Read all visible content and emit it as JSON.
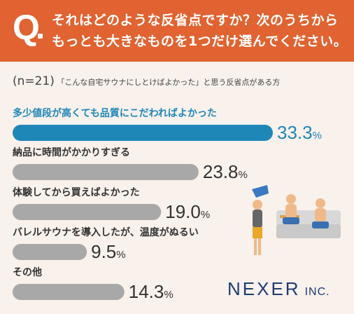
{
  "header": {
    "q_letter": "Q",
    "question_line1": "それはどのような反省点ですか？次のうちから",
    "question_line2": "もっとも大きなものを1つだけ選んでください。"
  },
  "sample": {
    "n_label": "(n=21)",
    "description": "「こんな自宅サウナにしとけばよかった」と思う反省点がある方"
  },
  "chart_data": {
    "type": "bar",
    "orientation": "horizontal",
    "categories": [
      "多少値段が高くても品質にこだわればよかった",
      "納品に時間がかかりすぎる",
      "体験してから買えばよかった",
      "バレルサウナを導入したが、温度がぬるい",
      "その他"
    ],
    "values": [
      33.3,
      23.8,
      19.0,
      9.5,
      14.3
    ],
    "value_labels": [
      "33.3",
      "23.8",
      "19.0",
      "9.5",
      "14.3"
    ],
    "unit": "%",
    "highlight_color": "#1f87b8",
    "bar_color": "#a8a8a8",
    "xlim": [
      0,
      33.3
    ]
  },
  "logo": {
    "name": "NEXER",
    "suffix": "INC."
  }
}
